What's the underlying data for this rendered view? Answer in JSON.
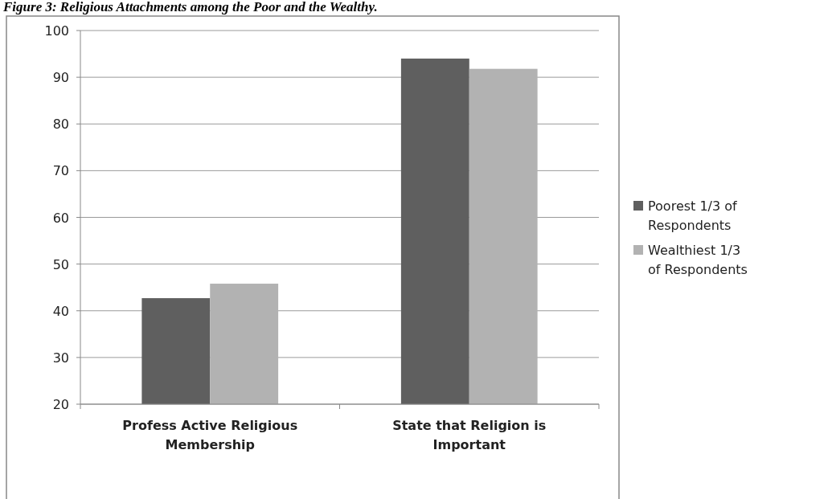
{
  "chart_data": {
    "type": "bar",
    "title": "Figure 3: Religious Attachments among the Poor and the Wealthy.",
    "categories": [
      "Profess Active Religious Membership",
      "State that Religion is Important"
    ],
    "series": [
      {
        "name": "Poorest 1/3 of Respondents",
        "color": "#5f5f5f",
        "values": [
          42.7,
          94
        ]
      },
      {
        "name": "Wealthiest 1/3 of Respondents",
        "color": "#b2b2b2",
        "values": [
          45.8,
          91.8
        ]
      }
    ],
    "ylim": [
      20,
      100
    ],
    "yticks": [
      20,
      30,
      40,
      50,
      60,
      70,
      80,
      90,
      100
    ],
    "grid": "y",
    "legend": "right"
  }
}
